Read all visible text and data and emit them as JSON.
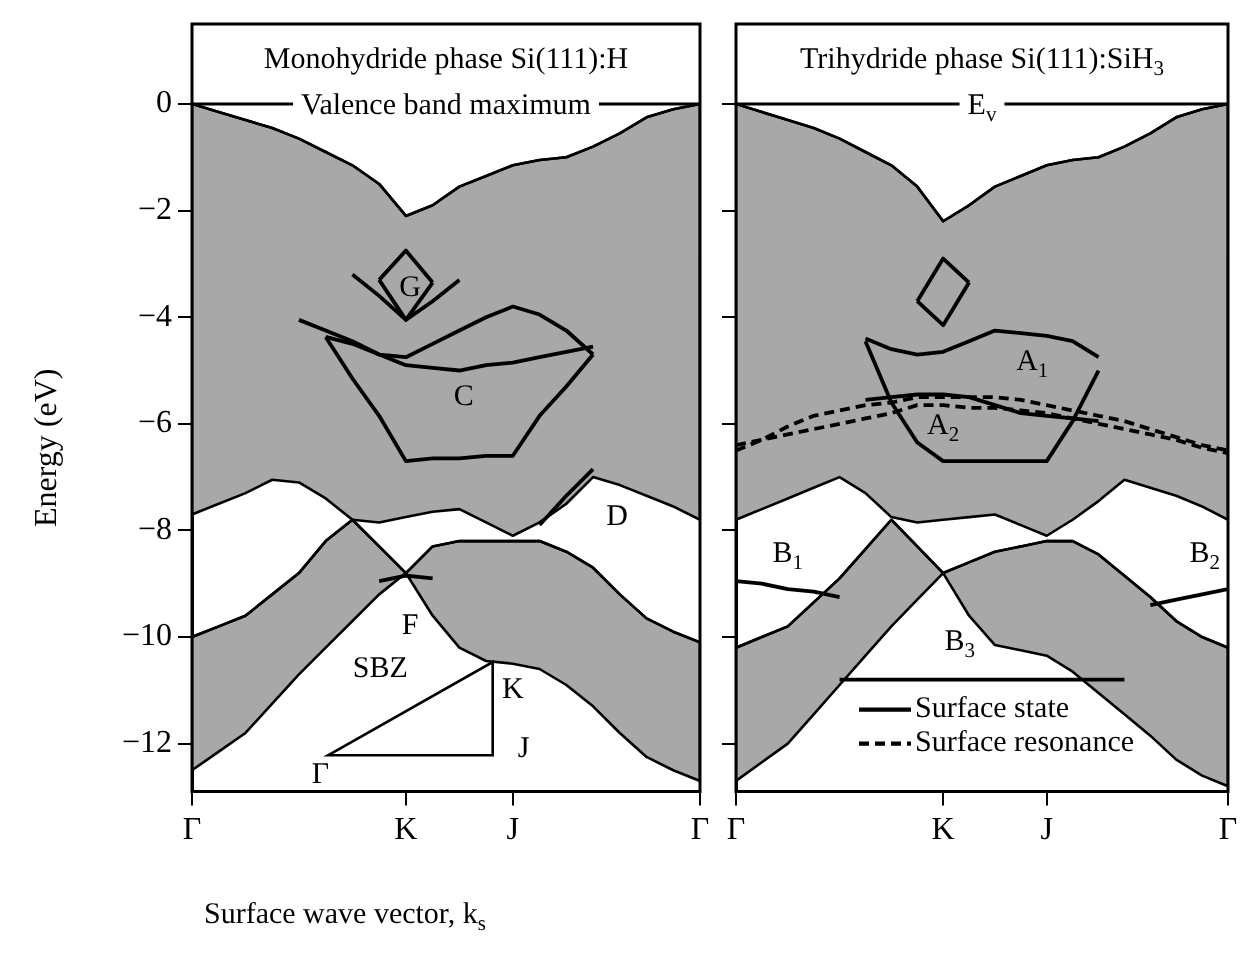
{
  "chart_data": [
    {
      "type": "line",
      "title": "Monohydride phase Si(111):H",
      "ylabel": "Energy (eV)",
      "xlabel": "Surface wave vector, k$_{s}$",
      "categories": [
        "Γ",
        null,
        null,
        null,
        null,
        null,
        null,
        null,
        "K",
        null,
        null,
        null,
        "J",
        null,
        null,
        null,
        null,
        null,
        null,
        "Γ"
      ],
      "ylim": [
        -12.9,
        0
      ],
      "yticks": [
        0,
        -2,
        -4,
        -6,
        -8,
        -10,
        -12
      ],
      "annotations": [
        "Valence band maximum",
        "G",
        "C",
        "D",
        "F",
        "SBZ",
        "K",
        "J",
        "Γ"
      ],
      "series": [
        {
          "color": "#000000",
          "values": [
            0,
            -0.15,
            -0.3,
            -0.45,
            -0.65,
            -0.9,
            -1.15,
            -1.5,
            -2.1,
            -1.9,
            -1.55,
            -1.35,
            -1.15,
            -1.05,
            -1.0,
            -0.8,
            -0.55,
            -0.25,
            -0.1,
            0
          ],
          "upper": [
            0,
            -0.15,
            -0.3,
            -0.45,
            -0.65,
            -0.9,
            -1.15,
            -1.5,
            -2.1,
            -1.9,
            -1.55,
            -1.35,
            -1.15,
            -1.05,
            -1.0,
            -0.8,
            -0.55,
            -0.25,
            -0.1,
            0
          ],
          "lower": [
            -7.7,
            -7.5,
            -7.3,
            -7.05,
            -7.1,
            -7.4,
            -7.8,
            -7.85,
            -7.75,
            -7.65,
            -7.6,
            -7.85,
            -8.1,
            -7.85,
            -7.5,
            -7.0,
            -7.15,
            -7.35,
            -7.55,
            -7.8
          ]
        },
        {
          "color": "#000000",
          "values": [
            -10,
            -9.8,
            -9.6,
            -9.2,
            -8.8,
            -8.2,
            -7.8,
            -8.3,
            -8.8,
            null,
            null,
            null,
            null,
            null,
            null,
            null,
            null,
            null,
            null,
            null
          ],
          "upper": [
            -10,
            -9.8,
            -9.6,
            -9.2,
            -8.8,
            -8.2,
            -7.8,
            -8.3,
            -8.8,
            null,
            null,
            null,
            null,
            null,
            null,
            null,
            null,
            null,
            null,
            null
          ],
          "lower": [
            -12.5,
            -12.15,
            -11.8,
            -11.25,
            -10.7,
            -10.2,
            -9.7,
            -9.2,
            -8.8,
            null,
            null,
            null,
            null,
            null,
            null,
            null,
            null,
            null,
            null,
            null
          ]
        },
        {
          "color": "#000000",
          "values": [
            null,
            null,
            null,
            null,
            null,
            null,
            null,
            null,
            -8.8,
            -8.3,
            -8.2,
            -8.2,
            -8.2,
            -8.2,
            -8.4,
            -8.7,
            -9.2,
            -9.65,
            -9.9,
            -10.1
          ],
          "upper": [
            null,
            null,
            null,
            null,
            null,
            null,
            null,
            null,
            -8.8,
            -8.3,
            -8.2,
            -8.2,
            -8.2,
            -8.2,
            -8.4,
            -8.7,
            -9.2,
            -9.65,
            -9.9,
            -10.1
          ],
          "lower": [
            null,
            null,
            null,
            null,
            null,
            null,
            null,
            null,
            -8.8,
            -9.6,
            -10.2,
            -10.45,
            -10.5,
            -10.6,
            -10.9,
            -11.3,
            -11.8,
            -12.25,
            -12.5,
            -12.7
          ]
        },
        {
          "color": "#000000",
          "line_style": "solid",
          "values": [
            null,
            null,
            null,
            null,
            null,
            null,
            null,
            -3.3,
            -2.75,
            -3.35,
            null,
            null,
            null,
            null,
            null,
            null,
            null,
            null,
            null,
            null
          ]
        },
        {
          "color": "#000000",
          "line_style": "solid",
          "values": [
            null,
            null,
            null,
            null,
            null,
            null,
            null,
            -3.3,
            -4.05,
            -3.35,
            null,
            null,
            null,
            null,
            null,
            null,
            null,
            null,
            null,
            null
          ]
        },
        {
          "color": "#000000",
          "line_style": "solid",
          "values": [
            null,
            null,
            null,
            null,
            null,
            -4.37,
            -4.5,
            -4.7,
            -4.75,
            -4.5,
            -4.25,
            -4.0,
            -3.8,
            -3.95,
            -4.25,
            -4.7,
            null,
            null,
            null,
            null
          ]
        },
        {
          "color": "#000000",
          "line_style": "solid",
          "values": [
            null,
            null,
            null,
            null,
            null,
            -4.37,
            -5.15,
            -5.85,
            -6.7,
            -6.65,
            -6.65,
            -6.6,
            -6.6,
            -5.85,
            -5.3,
            -4.7,
            null,
            null,
            null,
            null
          ]
        },
        {
          "color": "#000000",
          "line_style": "solid",
          "values": [
            null,
            null,
            null,
            null,
            null,
            null,
            -3.2,
            -3.6,
            -4.05,
            -3.7,
            -3.3,
            null,
            null,
            null,
            null,
            null,
            null,
            null,
            null,
            null
          ]
        },
        {
          "color": "#000000",
          "line_style": "solid",
          "values": [
            null,
            null,
            null,
            null,
            -4.05,
            -4.25,
            -4.45,
            -4.7,
            -4.9,
            -4.95,
            -5.0,
            -4.9,
            -4.85,
            -4.75,
            -4.65,
            -4.55,
            null,
            null,
            null,
            null
          ]
        },
        {
          "color": "#000000",
          "line_style": "solid",
          "values": [
            null,
            null,
            null,
            null,
            null,
            null,
            null,
            null,
            null,
            null,
            null,
            null,
            null,
            -7.9,
            -7.35,
            -6.85,
            null,
            null,
            null,
            null
          ]
        },
        {
          "color": "#000000",
          "line_style": "solid",
          "values": [
            null,
            null,
            null,
            null,
            null,
            null,
            null,
            -8.95,
            -8.85,
            -8.9,
            null,
            null,
            null,
            null,
            null,
            null,
            null,
            null,
            null,
            null
          ]
        }
      ]
    },
    {
      "type": "line",
      "title": "Trihydride phase Si(111):SiH$_{3}$",
      "tick_labels": "x",
      "legend": "bottom",
      "categories": [
        "Γ",
        null,
        null,
        null,
        null,
        null,
        null,
        null,
        "K",
        null,
        null,
        null,
        "J",
        null,
        null,
        null,
        null,
        null,
        null,
        "Γ"
      ],
      "ylim": [
        -12.9,
        0
      ],
      "yticks": [
        0,
        -2,
        -4,
        -6,
        -8,
        -10,
        -12
      ],
      "annotations": [
        "E$_{v}$",
        "A$_{1}$",
        "A$_{2}$",
        "B$_{1}$",
        "B$_{2}$",
        "B$_{3}$"
      ],
      "series": [
        {
          "color": "#000000",
          "values": [
            0,
            -0.15,
            -0.3,
            -0.45,
            -0.65,
            -0.9,
            -1.15,
            -1.55,
            -2.2,
            -1.9,
            -1.55,
            -1.35,
            -1.15,
            -1.05,
            -1.0,
            -0.8,
            -0.55,
            -0.25,
            -0.1,
            0
          ],
          "upper": [
            0,
            -0.15,
            -0.3,
            -0.45,
            -0.65,
            -0.9,
            -1.15,
            -1.55,
            -2.2,
            -1.9,
            -1.55,
            -1.35,
            -1.15,
            -1.05,
            -1.0,
            -0.8,
            -0.55,
            -0.25,
            -0.1,
            0
          ],
          "lower": [
            -7.8,
            -7.6,
            -7.4,
            -7.2,
            -7.0,
            -7.3,
            -7.75,
            -7.85,
            -7.8,
            -7.75,
            -7.7,
            -7.9,
            -8.1,
            -7.8,
            -7.45,
            -7.05,
            -7.2,
            -7.35,
            -7.55,
            -7.8
          ]
        },
        {
          "color": "#000000",
          "values": [
            -10.2,
            -10.0,
            -9.8,
            -9.35,
            -8.9,
            -8.35,
            -7.8,
            -8.3,
            -8.8,
            null,
            null,
            null,
            null,
            null,
            null,
            null,
            null,
            null,
            null,
            null
          ],
          "upper": [
            -10.2,
            -10.0,
            -9.8,
            -9.35,
            -8.9,
            -8.35,
            -7.8,
            -8.3,
            -8.8,
            null,
            null,
            null,
            null,
            null,
            null,
            null,
            null,
            null,
            null,
            null
          ],
          "lower": [
            -12.7,
            -12.35,
            -12.0,
            -11.45,
            -10.9,
            -10.35,
            -9.8,
            -9.3,
            -8.8,
            null,
            null,
            null,
            null,
            null,
            null,
            null,
            null,
            null,
            null,
            null
          ]
        },
        {
          "color": "#000000",
          "values": [
            null,
            null,
            null,
            null,
            null,
            null,
            null,
            null,
            -8.8,
            -8.6,
            -8.4,
            -8.3,
            -8.2,
            -8.2,
            -8.45,
            -8.85,
            -9.25,
            -9.7,
            -10.0,
            -10.2
          ],
          "upper": [
            null,
            null,
            null,
            null,
            null,
            null,
            null,
            null,
            -8.8,
            -8.6,
            -8.4,
            -8.3,
            -8.2,
            -8.2,
            -8.45,
            -8.85,
            -9.25,
            -9.7,
            -10.0,
            -10.2
          ],
          "lower": [
            null,
            null,
            null,
            null,
            null,
            null,
            null,
            null,
            -8.8,
            -9.6,
            -10.15,
            -10.25,
            -10.35,
            -10.65,
            -11.05,
            -11.45,
            -11.85,
            -12.3,
            -12.6,
            -12.8
          ]
        },
        {
          "color": "#000000",
          "line_style": "solid",
          "values": [
            null,
            null,
            null,
            null,
            null,
            null,
            null,
            -3.7,
            -2.9,
            -3.35,
            null,
            null,
            null,
            null,
            null,
            null,
            null,
            null,
            null,
            null
          ]
        },
        {
          "color": "#000000",
          "line_style": "solid",
          "values": [
            null,
            null,
            null,
            null,
            null,
            null,
            null,
            -3.7,
            -4.15,
            -3.35,
            null,
            null,
            null,
            null,
            null,
            null,
            null,
            null,
            null,
            null
          ]
        },
        {
          "color": "#000000",
          "line_style": "solid",
          "values": [
            null,
            null,
            null,
            null,
            null,
            -4.4,
            -4.6,
            -4.7,
            -4.65,
            -4.45,
            -4.25,
            -4.3,
            -4.35,
            -4.45,
            -4.75,
            null,
            null,
            null,
            null,
            null
          ]
        },
        {
          "color": "#000000",
          "line_style": "solid",
          "values": [
            null,
            null,
            null,
            null,
            null,
            -4.45,
            -5.6,
            -6.35,
            -6.7,
            -6.7,
            -6.7,
            -6.7,
            -6.7,
            -5.95,
            -5.0,
            null,
            null,
            null,
            null,
            null
          ]
        },
        {
          "name": "Surface state",
          "color": "#000000",
          "line_style": "solid",
          "values": [
            null,
            null,
            null,
            null,
            null,
            -5.55,
            -5.5,
            -5.45,
            -5.45,
            -5.5,
            -5.65,
            -5.8,
            -5.85,
            -5.9,
            -5.95,
            null,
            null,
            null,
            null,
            null
          ]
        },
        {
          "name": "Surface resonance",
          "color": "#000000",
          "line_style": "dashed",
          "values": [
            -6.5,
            -6.3,
            -6.05,
            -5.85,
            -5.75,
            -5.65,
            -5.6,
            -5.5,
            -5.5,
            -5.5,
            -5.5,
            -5.55,
            -5.65,
            -5.75,
            -5.85,
            -5.95,
            -6.1,
            -6.25,
            -6.4,
            -6.5
          ]
        },
        {
          "color": "#000000",
          "line_style": "dashed",
          "values": [
            -6.4,
            -6.3,
            -6.2,
            -6.1,
            -6.0,
            -5.9,
            -5.8,
            -5.65,
            -5.65,
            -5.7,
            -5.7,
            -5.75,
            -5.8,
            -5.9,
            -6.0,
            -6.1,
            -6.2,
            -6.3,
            -6.45,
            -6.55
          ]
        },
        {
          "color": "#000000",
          "line_style": "solid",
          "values": [
            -8.95,
            -9.0,
            -9.1,
            -9.15,
            -9.25,
            null,
            null,
            null,
            null,
            null,
            null,
            null,
            null,
            null,
            null,
            null,
            null,
            null,
            null,
            null
          ]
        },
        {
          "color": "#000000",
          "line_style": "solid",
          "values": [
            null,
            null,
            null,
            null,
            null,
            null,
            null,
            null,
            null,
            null,
            null,
            null,
            null,
            null,
            null,
            null,
            -9.4,
            -9.3,
            -9.2,
            -9.1
          ]
        },
        {
          "color": "#000000",
          "line_style": "solid",
          "values": [
            null,
            null,
            null,
            null,
            -10.8,
            -10.8,
            -10.8,
            -10.8,
            -10.8,
            -10.8,
            -10.8,
            -10.8,
            -10.8,
            -10.8,
            -10.8,
            -10.8,
            null,
            null,
            null,
            null
          ]
        }
      ]
    }
  ]
}
